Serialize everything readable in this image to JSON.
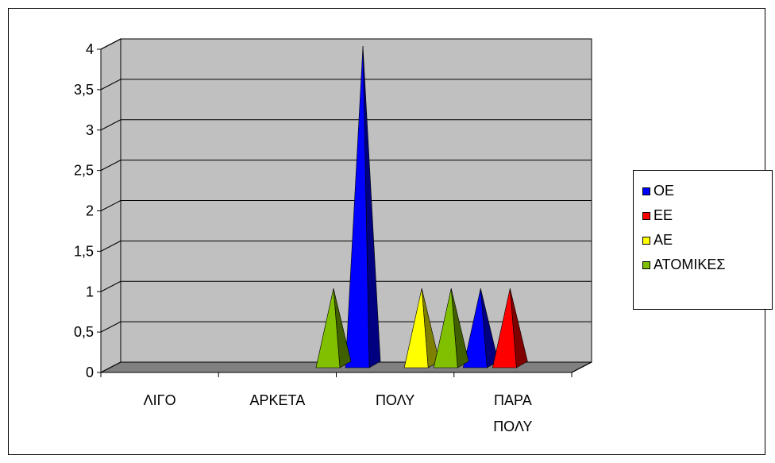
{
  "chart_data": {
    "type": "bar",
    "style": "3d-pyramid",
    "title": "",
    "xlabel": "",
    "ylabel": "",
    "categories": [
      "ΛΙΓΟ",
      "ΑΡΚΕΤΑ",
      "ΠΟΛΥ",
      "ΠΑΡΑ ΠΟΛΥ"
    ],
    "category_lines": [
      [
        "ΛΙΓΟ"
      ],
      [
        "ΑΡΚΕΤΑ"
      ],
      [
        "ΠΟΛΥ"
      ],
      [
        "ΠΑΡΑ",
        "ΠΟΛΥ"
      ]
    ],
    "series": [
      {
        "name": "ΟΕ",
        "color": "#0000FF",
        "values": [
          0,
          0,
          4,
          1
        ]
      },
      {
        "name": "ΕΕ",
        "color": "#FF0000",
        "values": [
          0,
          0,
          0,
          1
        ]
      },
      {
        "name": "ΑΕ",
        "color": "#FFFF00",
        "values": [
          0,
          0,
          1,
          0
        ]
      },
      {
        "name": "ΑΤΟΜΙΚΕΣ",
        "color": "#80C000",
        "values": [
          0,
          1,
          1,
          0
        ]
      }
    ],
    "ylim": [
      0,
      4
    ],
    "yticks": [
      "0",
      "0,5",
      "1",
      "1,5",
      "2",
      "2,5",
      "3",
      "3,5",
      "4"
    ],
    "grid": true,
    "legend_position": "right",
    "colors": {
      "wall": "#C0C0C0",
      "floor": "#808080",
      "gridline": "#000000"
    }
  }
}
